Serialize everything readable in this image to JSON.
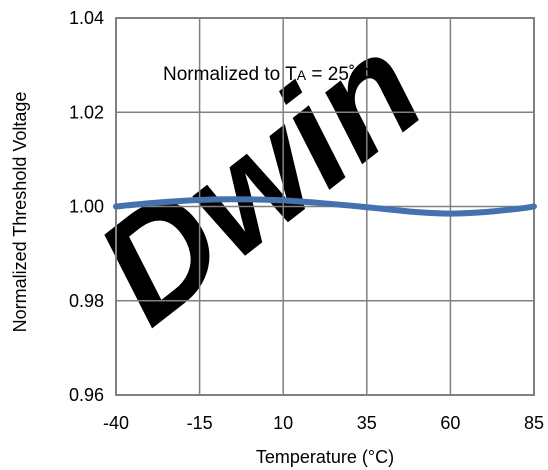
{
  "colors": {
    "line": "#4472B0",
    "grid": "#808080",
    "frame": "#808080",
    "watermark": "#E50000"
  },
  "chart_data": {
    "type": "line",
    "title": "",
    "xlabel": "Temperature (°C)",
    "ylabel": "Normalized Threshold Voltage",
    "xlim": [
      -40,
      85
    ],
    "ylim": [
      0.96,
      1.04
    ],
    "x_ticks": [
      "-40",
      "-15",
      "10",
      "35",
      "60",
      "85"
    ],
    "y_ticks": [
      "0.96",
      "0.98",
      "1.00",
      "1.02",
      "1.04"
    ],
    "grid": true,
    "legend": "none",
    "annotation": {
      "prefix": "Normalized to T",
      "subscript": "A",
      "suffix": " = 25˚C"
    },
    "watermark_text": "Dwin",
    "series": [
      {
        "x": [
          -40,
          -30,
          -20,
          -10,
          0,
          10,
          20,
          30,
          40,
          50,
          60,
          70,
          80,
          85
        ],
        "y": [
          1.0,
          1.0007,
          1.0012,
          1.0015,
          1.0015,
          1.0013,
          1.0008,
          1.0002,
          0.9995,
          0.9988,
          0.9985,
          0.9988,
          0.9995,
          1.0
        ]
      }
    ]
  }
}
